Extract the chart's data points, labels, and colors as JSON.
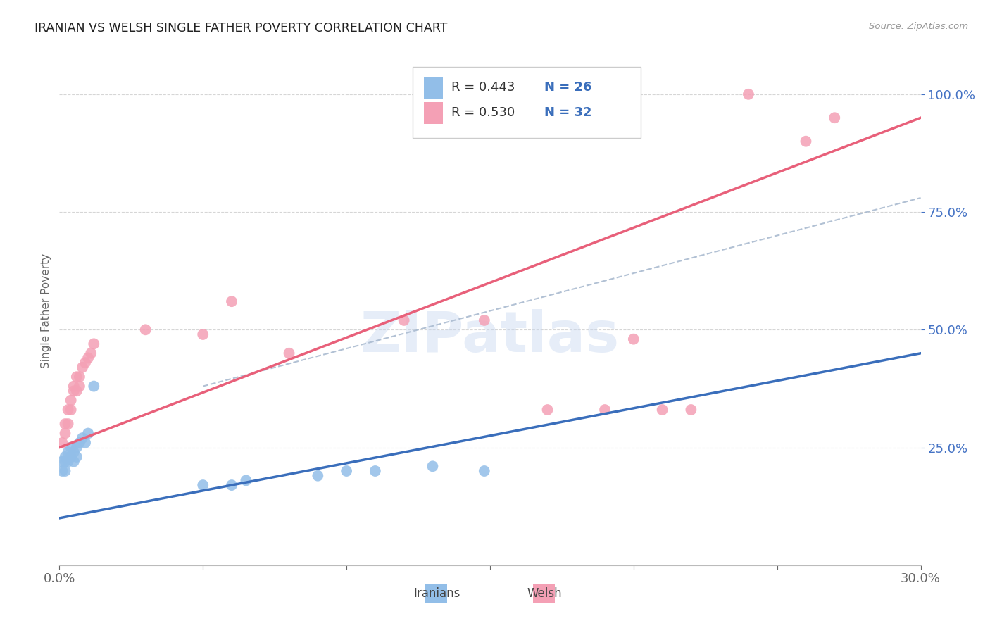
{
  "title": "IRANIAN VS WELSH SINGLE FATHER POVERTY CORRELATION CHART",
  "source": "Source: ZipAtlas.com",
  "ylabel_label": "Single Father Poverty",
  "x_min": 0.0,
  "x_max": 0.3,
  "y_min": 0.0,
  "y_max": 1.08,
  "iranian_color": "#92BEE8",
  "welsh_color": "#F4A0B5",
  "iranian_line_color": "#3A6EBB",
  "welsh_line_color": "#E8607A",
  "dash_line_color": "#AABBD0",
  "iranian_R": 0.443,
  "iranian_N": 26,
  "welsh_R": 0.53,
  "welsh_N": 32,
  "legend_text_color": "#333333",
  "legend_N_color": "#3A6EBB",
  "watermark": "ZIPatlas",
  "iranian_x": [
    0.001,
    0.001,
    0.002,
    0.002,
    0.002,
    0.003,
    0.003,
    0.004,
    0.004,
    0.005,
    0.005,
    0.006,
    0.006,
    0.007,
    0.008,
    0.009,
    0.01,
    0.012,
    0.05,
    0.06,
    0.065,
    0.09,
    0.1,
    0.11,
    0.13,
    0.148
  ],
  "iranian_y": [
    0.2,
    0.22,
    0.2,
    0.22,
    0.23,
    0.22,
    0.24,
    0.23,
    0.25,
    0.22,
    0.24,
    0.23,
    0.25,
    0.26,
    0.27,
    0.26,
    0.28,
    0.38,
    0.17,
    0.17,
    0.18,
    0.19,
    0.2,
    0.2,
    0.21,
    0.2
  ],
  "welsh_x": [
    0.001,
    0.002,
    0.002,
    0.003,
    0.003,
    0.004,
    0.004,
    0.005,
    0.005,
    0.006,
    0.006,
    0.007,
    0.007,
    0.008,
    0.009,
    0.01,
    0.011,
    0.012,
    0.03,
    0.05,
    0.06,
    0.08,
    0.12,
    0.148,
    0.17,
    0.19,
    0.2,
    0.21,
    0.22,
    0.24,
    0.26,
    0.27
  ],
  "welsh_y": [
    0.26,
    0.28,
    0.3,
    0.3,
    0.33,
    0.35,
    0.33,
    0.37,
    0.38,
    0.4,
    0.37,
    0.4,
    0.38,
    0.42,
    0.43,
    0.44,
    0.45,
    0.47,
    0.5,
    0.49,
    0.56,
    0.45,
    0.52,
    0.52,
    0.33,
    0.33,
    0.48,
    0.33,
    0.33,
    1.0,
    0.9,
    0.95
  ],
  "grid_color": "#CCCCCC",
  "background_color": "#FFFFFF",
  "tick_color": "#4472C4"
}
